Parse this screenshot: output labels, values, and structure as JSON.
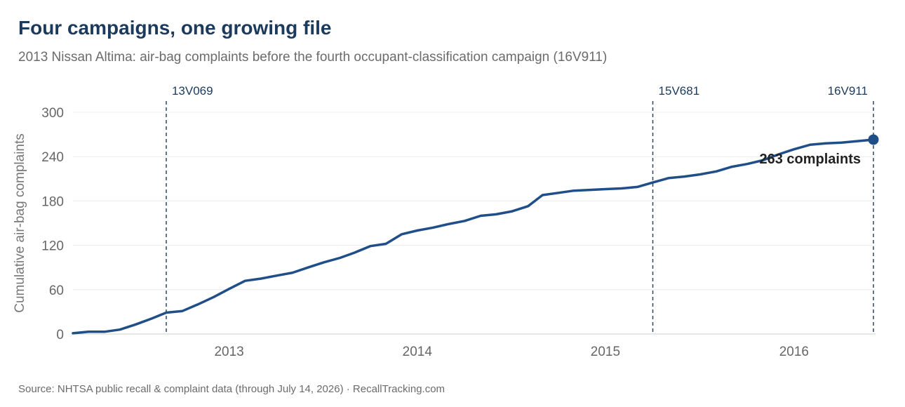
{
  "header": {
    "title": "Four campaigns, one growing file",
    "subtitle": "2013 Nissan Altima: air-bag complaints before the fourth occupant-classification campaign (16V911)"
  },
  "footer": {
    "source": "Source: NHTSA public recall & complaint data (through July 14, 2026) · RecallTracking.com"
  },
  "chart_data": {
    "type": "line",
    "ylabel": "Cumulative air-bag complaints",
    "ylim": [
      0,
      300
    ],
    "yticks": [
      0,
      60,
      120,
      180,
      240,
      300
    ],
    "x_ticks": [
      "2013",
      "2014",
      "2015",
      "2016"
    ],
    "grid": "horizontal",
    "series": [
      {
        "color": "#1f4e89",
        "points": [
          [
            "2012-09-01",
            1
          ],
          [
            "2012-10-01",
            3
          ],
          [
            "2012-11-01",
            3
          ],
          [
            "2012-12-01",
            6
          ],
          [
            "2013-01-01",
            13
          ],
          [
            "2013-02-01",
            21
          ],
          [
            "2013-03-01",
            29
          ],
          [
            "2013-04-01",
            31
          ],
          [
            "2013-05-01",
            40
          ],
          [
            "2013-06-01",
            50
          ],
          [
            "2013-07-01",
            61
          ],
          [
            "2013-08-01",
            72
          ],
          [
            "2013-09-01",
            75
          ],
          [
            "2013-10-01",
            79
          ],
          [
            "2013-11-01",
            83
          ],
          [
            "2013-12-01",
            90
          ],
          [
            "2014-01-01",
            97
          ],
          [
            "2014-02-01",
            103
          ],
          [
            "2014-03-01",
            110
          ],
          [
            "2014-04-01",
            119
          ],
          [
            "2014-05-01",
            122
          ],
          [
            "2014-06-01",
            135
          ],
          [
            "2014-07-01",
            140
          ],
          [
            "2014-08-01",
            144
          ],
          [
            "2014-09-01",
            149
          ],
          [
            "2014-10-01",
            153
          ],
          [
            "2014-11-01",
            160
          ],
          [
            "2014-12-01",
            162
          ],
          [
            "2015-01-01",
            166
          ],
          [
            "2015-02-01",
            173
          ],
          [
            "2015-03-01",
            188
          ],
          [
            "2015-04-01",
            191
          ],
          [
            "2015-05-01",
            194
          ],
          [
            "2015-06-01",
            195
          ],
          [
            "2015-07-01",
            196
          ],
          [
            "2015-08-01",
            197
          ],
          [
            "2015-09-01",
            199
          ],
          [
            "2015-10-01",
            205
          ],
          [
            "2015-11-01",
            211
          ],
          [
            "2015-12-01",
            213
          ],
          [
            "2016-01-01",
            216
          ],
          [
            "2016-02-01",
            220
          ],
          [
            "2016-03-01",
            226
          ],
          [
            "2016-04-01",
            230
          ],
          [
            "2016-05-01",
            235
          ],
          [
            "2016-06-01",
            243
          ],
          [
            "2016-07-01",
            250
          ],
          [
            "2016-08-01",
            256
          ],
          [
            "2016-09-01",
            258
          ],
          [
            "2016-10-01",
            259
          ],
          [
            "2016-11-01",
            261
          ],
          [
            "2016-12-02",
            263
          ]
        ]
      }
    ],
    "events": [
      {
        "label": "13V069",
        "date": "2013-03-01"
      },
      {
        "label": "15V681",
        "date": "2015-10-01"
      },
      {
        "label": "16V911",
        "date": "2016-12-02"
      }
    ],
    "endpoint": {
      "label": "263 complaints",
      "date": "2016-12-02",
      "value": 263
    }
  }
}
